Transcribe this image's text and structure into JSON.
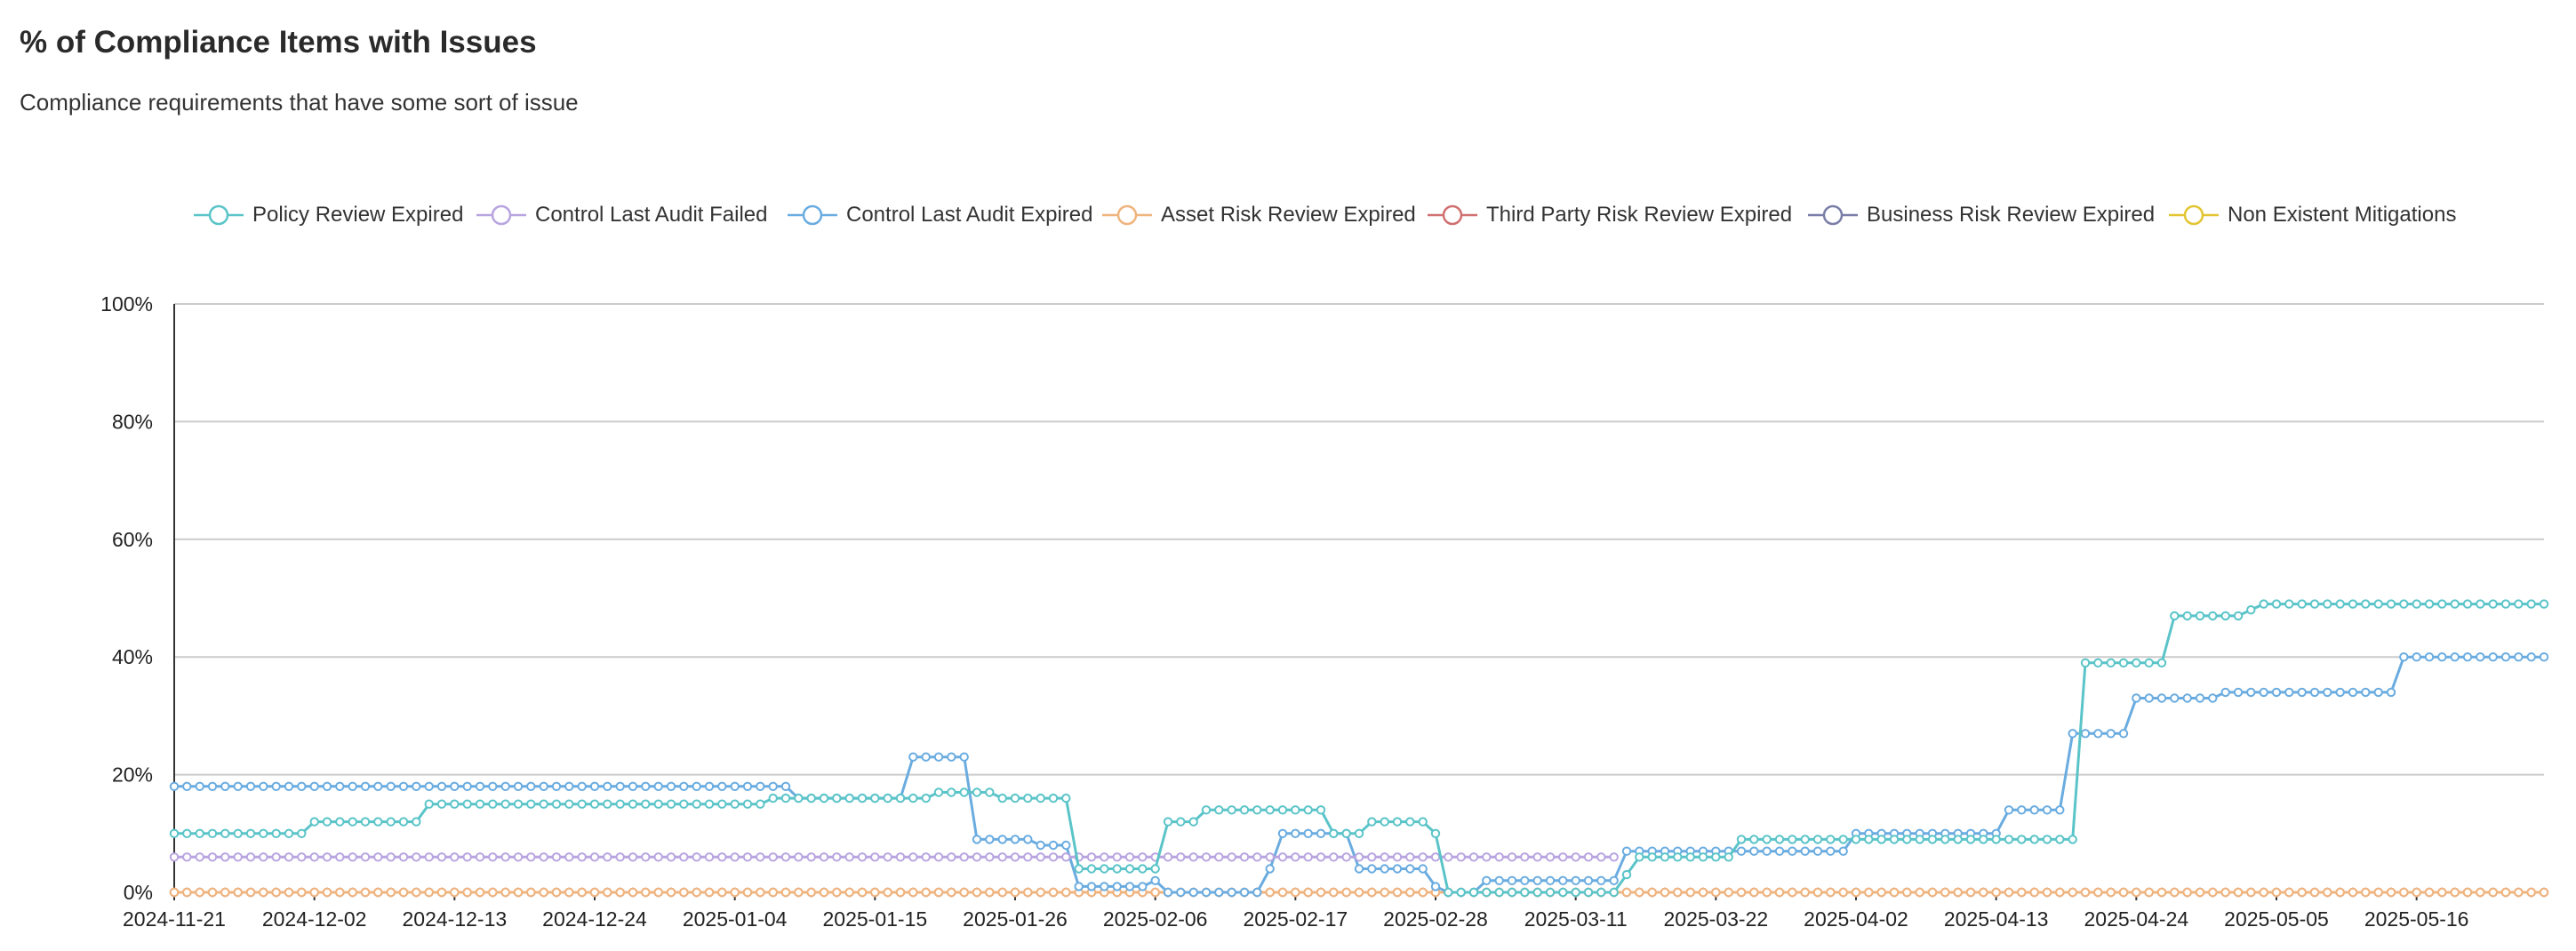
{
  "header": {
    "title": "% of Compliance Items with Issues",
    "subtitle": "Compliance requirements that have some sort of issue"
  },
  "chart_data": {
    "type": "line",
    "title": "% of Compliance Items with Issues",
    "subtitle": "Compliance requirements that have some sort of issue",
    "xlabel": "",
    "ylabel": "",
    "x_tick_labels": [
      "2024-11-21",
      "2024-12-02",
      "2024-12-13",
      "2024-12-24",
      "2025-01-04",
      "2025-01-15",
      "2025-01-26",
      "2025-02-06",
      "2025-02-17",
      "2025-02-28",
      "2025-03-11",
      "2025-03-22",
      "2025-04-02",
      "2025-04-13",
      "2025-04-24",
      "2025-05-05",
      "2025-05-16"
    ],
    "y_tick_labels": [
      "0%",
      "20%",
      "40%",
      "60%",
      "80%",
      "100%"
    ],
    "x_range": [
      "2024-11-21",
      "2025-05-26"
    ],
    "ylim": [
      0,
      100
    ],
    "y_unit": "%",
    "grid": "horizontal",
    "legend_position": "top",
    "series": [
      {
        "name": "Policy Review Expired",
        "color": "#5ac4c8",
        "values": [
          [
            "2024-11-21",
            10
          ],
          [
            "2024-12-01",
            10
          ],
          [
            "2024-12-02",
            12
          ],
          [
            "2024-12-10",
            12
          ],
          [
            "2024-12-11",
            15
          ],
          [
            "2025-01-06",
            15
          ],
          [
            "2025-01-07",
            16
          ],
          [
            "2025-01-19",
            16
          ],
          [
            "2025-01-20",
            17
          ],
          [
            "2025-01-24",
            17
          ],
          [
            "2025-01-25",
            16
          ],
          [
            "2025-01-30",
            16
          ],
          [
            "2025-01-31",
            4
          ],
          [
            "2025-02-06",
            4
          ],
          [
            "2025-02-07",
            12
          ],
          [
            "2025-02-09",
            12
          ],
          [
            "2025-02-10",
            14
          ],
          [
            "2025-02-19",
            14
          ],
          [
            "2025-02-20",
            10
          ],
          [
            "2025-02-22",
            10
          ],
          [
            "2025-02-23",
            12
          ],
          [
            "2025-02-27",
            12
          ],
          [
            "2025-02-28",
            10
          ],
          [
            "2025-03-01",
            0
          ],
          [
            "2025-03-14",
            0
          ],
          [
            "2025-03-15",
            3
          ],
          [
            "2025-03-16",
            6
          ],
          [
            "2025-03-23",
            6
          ],
          [
            "2025-03-24",
            9
          ],
          [
            "2025-04-02",
            9
          ],
          [
            "2025-04-03",
            9
          ],
          [
            "2025-04-19",
            9
          ],
          [
            "2025-04-20",
            39
          ],
          [
            "2025-04-26",
            39
          ],
          [
            "2025-04-27",
            47
          ],
          [
            "2025-05-02",
            47
          ],
          [
            "2025-05-03",
            48
          ],
          [
            "2025-05-04",
            49
          ],
          [
            "2025-05-26",
            49
          ]
        ]
      },
      {
        "name": "Control Last Audit Failed",
        "color": "#b8a4e0",
        "values": [
          [
            "2024-11-21",
            6
          ],
          [
            "2025-03-14",
            6
          ]
        ]
      },
      {
        "name": "Control Last Audit Expired",
        "color": "#6aace0",
        "values": [
          [
            "2024-11-21",
            18
          ],
          [
            "2025-01-08",
            18
          ],
          [
            "2025-01-09",
            16
          ],
          [
            "2025-01-17",
            16
          ],
          [
            "2025-01-18",
            23
          ],
          [
            "2025-01-22",
            23
          ],
          [
            "2025-01-23",
            9
          ],
          [
            "2025-01-27",
            9
          ],
          [
            "2025-01-28",
            8
          ],
          [
            "2025-01-30",
            8
          ],
          [
            "2025-01-31",
            1
          ],
          [
            "2025-02-05",
            1
          ],
          [
            "2025-02-06",
            2
          ],
          [
            "2025-02-07",
            0
          ],
          [
            "2025-02-14",
            0
          ],
          [
            "2025-02-15",
            4
          ],
          [
            "2025-02-16",
            10
          ],
          [
            "2025-02-21",
            10
          ],
          [
            "2025-02-22",
            4
          ],
          [
            "2025-02-27",
            4
          ],
          [
            "2025-02-28",
            1
          ],
          [
            "2025-03-01",
            0
          ],
          [
            "2025-03-03",
            0
          ],
          [
            "2025-03-04",
            2
          ],
          [
            "2025-03-13",
            2
          ],
          [
            "2025-03-14",
            2
          ],
          [
            "2025-03-15",
            7
          ],
          [
            "2025-03-24",
            7
          ],
          [
            "2025-04-01",
            7
          ],
          [
            "2025-04-02",
            10
          ],
          [
            "2025-04-13",
            10
          ],
          [
            "2025-04-14",
            14
          ],
          [
            "2025-04-18",
            14
          ],
          [
            "2025-04-19",
            27
          ],
          [
            "2025-04-23",
            27
          ],
          [
            "2025-04-24",
            33
          ],
          [
            "2025-04-30",
            33
          ],
          [
            "2025-05-01",
            34
          ],
          [
            "2025-05-14",
            34
          ],
          [
            "2025-05-15",
            40
          ],
          [
            "2025-05-26",
            40
          ]
        ]
      },
      {
        "name": "Asset Risk Review Expired",
        "color": "#f0b47e",
        "values": [
          [
            "2024-11-21",
            0
          ],
          [
            "2025-05-26",
            0
          ]
        ]
      },
      {
        "name": "Third Party Risk Review Expired",
        "color": "#d07070",
        "values": [
          [
            "2024-11-21",
            0
          ],
          [
            "2025-05-26",
            0
          ]
        ]
      },
      {
        "name": "Business Risk Review Expired",
        "color": "#7a7ea8",
        "values": [
          [
            "2024-11-21",
            0
          ],
          [
            "2025-05-26",
            0
          ]
        ]
      },
      {
        "name": "Non Existent Mitigations",
        "color": "#e3c531",
        "values": [
          [
            "2024-11-21",
            0
          ],
          [
            "2025-05-26",
            0
          ]
        ]
      }
    ]
  }
}
